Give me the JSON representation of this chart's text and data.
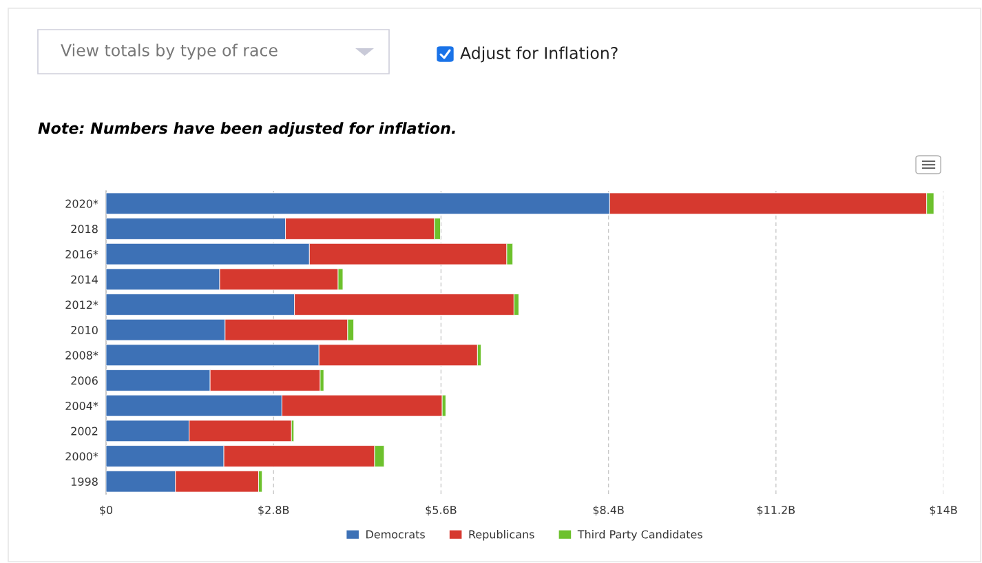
{
  "chart_data": {
    "type": "bar",
    "orientation": "horizontal",
    "stacked": true,
    "annotations": [
      "View totals by type of race",
      "Adjust for Inflation?",
      "Note: Numbers have been adjusted for inflation."
    ],
    "categories": [
      "2020*",
      "2018",
      "2016*",
      "2014",
      "2012*",
      "2010",
      "2008*",
      "2006",
      "2004*",
      "2002",
      "2000*",
      "1998"
    ],
    "series": [
      {
        "name": "Democrats",
        "color": "#3d71b6",
        "values": [
          8.42,
          3.0,
          3.4,
          1.9,
          3.15,
          1.99,
          3.56,
          1.74,
          2.94,
          1.39,
          1.97,
          1.16
        ]
      },
      {
        "name": "Republicans",
        "color": "#d6392f",
        "values": [
          5.3,
          2.49,
          3.3,
          1.98,
          3.67,
          2.05,
          2.65,
          1.84,
          2.68,
          1.71,
          2.52,
          1.39
        ]
      },
      {
        "name": "Third Party Candidates",
        "color": "#6dc12d",
        "values": [
          0.12,
          0.1,
          0.1,
          0.08,
          0.08,
          0.1,
          0.06,
          0.06,
          0.06,
          0.04,
          0.16,
          0.06
        ]
      }
    ],
    "xlim": [
      0,
      14
    ],
    "xticks": [
      {
        "value": 0,
        "label": "$0"
      },
      {
        "value": 2.8,
        "label": "$2.8B"
      },
      {
        "value": 5.6,
        "label": "$5.6B"
      },
      {
        "value": 8.4,
        "label": "$8.4B"
      },
      {
        "value": 11.2,
        "label": "$11.2B"
      },
      {
        "value": 14,
        "label": "$14B"
      }
    ],
    "grid": "x",
    "legend": "bottom"
  }
}
